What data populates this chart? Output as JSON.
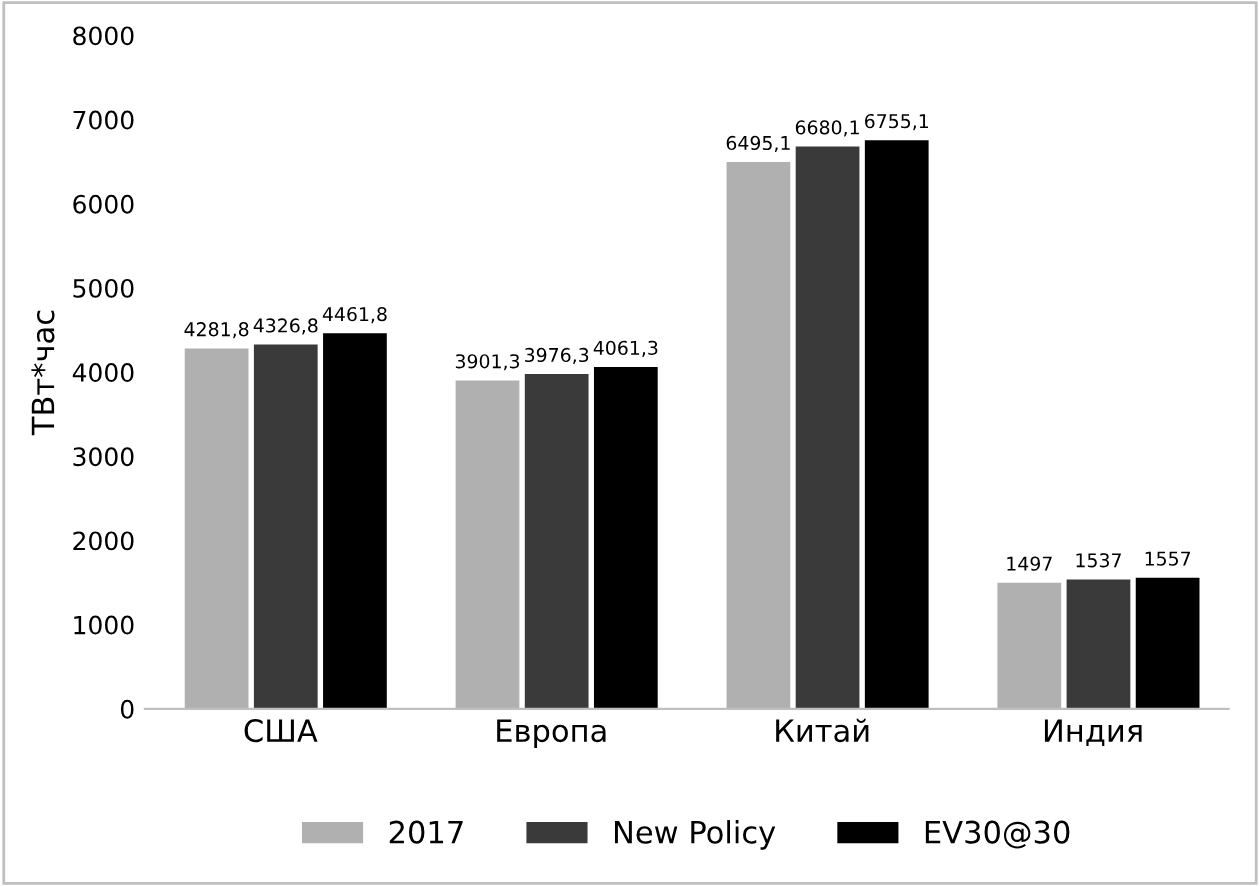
{
  "chart_data": {
    "type": "bar",
    "ylabel": "ТВт*час",
    "categories": [
      "США",
      "Европа",
      "Китай",
      "Индия"
    ],
    "series": [
      {
        "name": "2017",
        "color": "#b0b0b0",
        "values": [
          4281.8,
          3901.3,
          6495.1,
          1497
        ],
        "value_labels": [
          "4281,8",
          "3901,3",
          "6495,1",
          "1497"
        ]
      },
      {
        "name": "New Policy",
        "color": "#3a3a3a",
        "values": [
          4326.8,
          3976.3,
          6680.1,
          1537
        ],
        "value_labels": [
          "4326,8",
          "3976,3",
          "6680,1",
          "1537"
        ]
      },
      {
        "name": "EV30@30",
        "color": "#000000",
        "values": [
          4461.8,
          4061.3,
          6755.1,
          1557
        ],
        "value_labels": [
          "4461,8",
          "4061,3",
          "6755,1",
          "1557"
        ]
      }
    ],
    "ylim": [
      0,
      8000
    ],
    "yticks": [
      0,
      1000,
      2000,
      3000,
      4000,
      5000,
      6000,
      7000,
      8000
    ],
    "grid": false,
    "legend": "bottom"
  }
}
